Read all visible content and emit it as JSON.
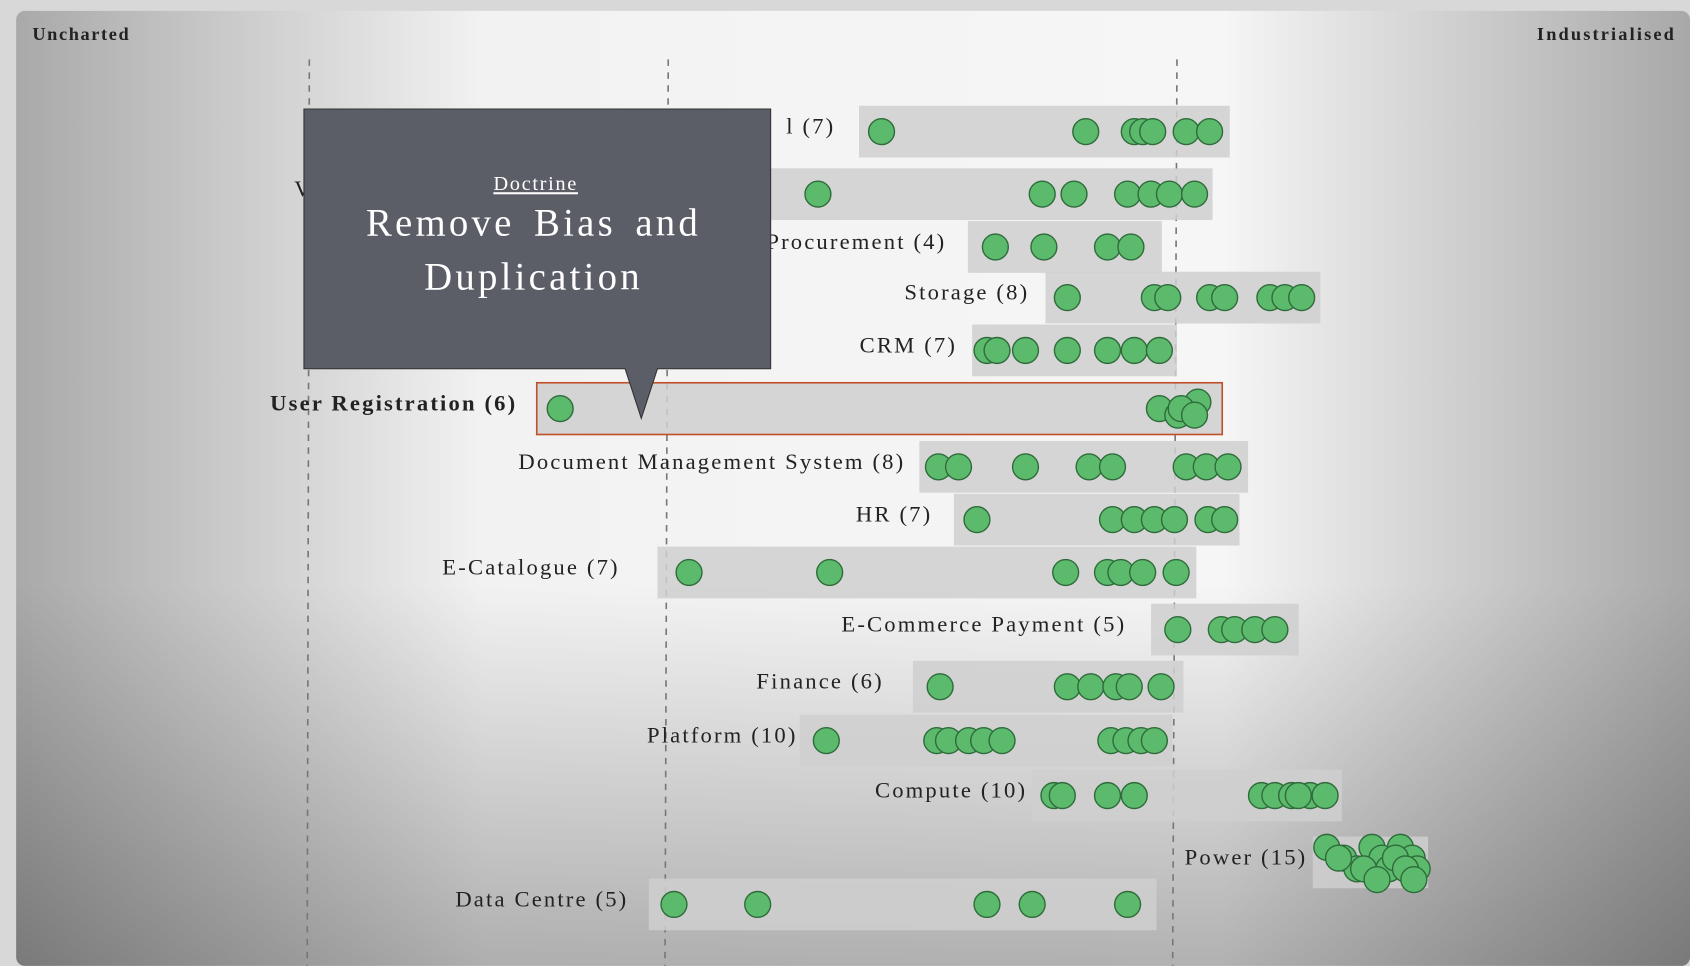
{
  "chart_data": {
    "type": "duplication",
    "xlim": [
      0,
      100
    ],
    "axis_labels": [
      "Uncharted",
      "Industrialised"
    ],
    "rows": [
      {
        "label": "l (7)",
        "values": [
          51.7,
          63.9,
          66.8,
          67.3,
          67.9,
          69.9,
          71.3
        ]
      },
      {
        "label": "V",
        "values": [
          47.9,
          61.3,
          63.2,
          66.4,
          67.8,
          68.9,
          70.4
        ]
      },
      {
        "label": "Procurement (4)",
        "values": [
          58.5,
          61.4,
          65.2,
          66.6
        ]
      },
      {
        "label": "Storage (8)",
        "values": [
          62.8,
          68.0,
          68.8,
          71.3,
          72.2,
          74.9,
          75.8,
          76.8
        ]
      },
      {
        "label": "CRM (7)",
        "values": [
          58.0,
          58.6,
          60.3,
          62.8,
          65.2,
          66.8,
          68.3
        ]
      },
      {
        "label": "User Registration (6)",
        "values": [
          32.5,
          68.3,
          69.4,
          70.6,
          69.6,
          70.4
        ]
      },
      {
        "label": "Document Management System (8)",
        "values": [
          55.1,
          56.3,
          60.3,
          64.1,
          65.5,
          69.9,
          71.1,
          72.4
        ]
      },
      {
        "label": "HR (7)",
        "values": [
          57.4,
          65.5,
          66.8,
          68.0,
          69.2,
          71.2,
          72.2
        ]
      },
      {
        "label": "E-Catalogue (7)",
        "values": [
          40.2,
          48.6,
          62.7,
          65.2,
          66.0,
          67.3,
          69.3
        ]
      },
      {
        "label": "E-Commerce Payment (5)",
        "values": [
          69.4,
          72.0,
          72.8,
          74.0,
          75.2
        ]
      },
      {
        "label": "Finance (6)",
        "values": [
          55.2,
          62.8,
          64.2,
          65.7,
          66.5,
          68.4
        ]
      },
      {
        "label": "Platform (10)",
        "values": [
          48.4,
          55.0,
          55.7,
          56.9,
          57.8,
          58.9,
          65.4,
          66.3,
          67.2,
          68.0
        ]
      },
      {
        "label": "Compute (10)",
        "values": [
          62.0,
          62.5,
          65.2,
          66.8,
          74.4,
          75.2,
          76.2,
          77.3,
          78.2,
          76.6
        ]
      },
      {
        "label": "Power (15)",
        "values": [
          78.3,
          79.3,
          80.1,
          81.0,
          81.6,
          82.0,
          82.7,
          83.4,
          83.7,
          79.0,
          80.5,
          81.3,
          82.4,
          83.0,
          83.5
        ]
      },
      {
        "label": "Data Centre (5)",
        "values": [
          39.3,
          44.3,
          58.0,
          60.7,
          66.4
        ]
      }
    ],
    "callout": {
      "heading": "Doctrine",
      "lines": [
        "Remove Bias and",
        "Duplication"
      ]
    }
  }
}
